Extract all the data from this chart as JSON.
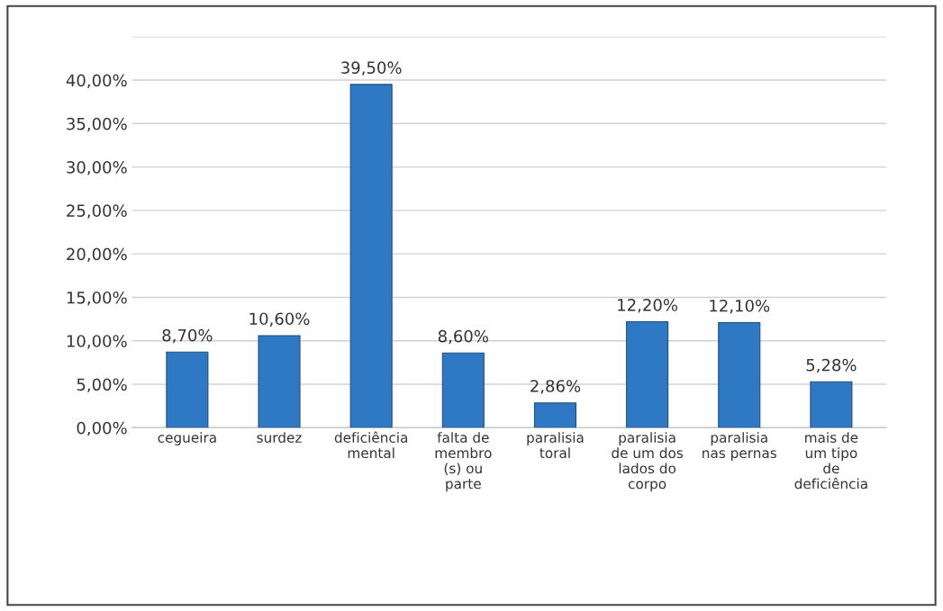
{
  "chart_data": {
    "type": "bar",
    "categories": [
      "cegueira",
      "surdez",
      "deficiência\nmental",
      "falta de\nmembro\n(s) ou\nparte",
      "paralisia\ntoral",
      "paralisia\nde um dos\nlados do\ncorpo",
      "paralisia\nnas pernas",
      "mais de\num tipo\nde\ndeficiência"
    ],
    "values": [
      8.7,
      10.6,
      39.5,
      8.6,
      2.86,
      12.2,
      12.1,
      5.28
    ],
    "value_labels": [
      "8,70%",
      "10,60%",
      "39,50%",
      "8,60%",
      "2,86%",
      "12,20%",
      "12,10%",
      "5,28%"
    ],
    "color": "#2f78c4",
    "ylim": [
      0,
      45
    ],
    "yticks": [
      {
        "value": 0,
        "label": "0,00%"
      },
      {
        "value": 5,
        "label": "5,00%"
      },
      {
        "value": 10,
        "label": "10,00%"
      },
      {
        "value": 15,
        "label": "15,00%"
      },
      {
        "value": 20,
        "label": "20,00%"
      },
      {
        "value": 25,
        "label": "25,00%"
      },
      {
        "value": 30,
        "label": "30,00%"
      },
      {
        "value": 35,
        "label": "35,00%"
      },
      {
        "value": 40,
        "label": "40,00%"
      },
      {
        "value": 45,
        "label": null
      }
    ],
    "grid": "y",
    "legend": false
  }
}
